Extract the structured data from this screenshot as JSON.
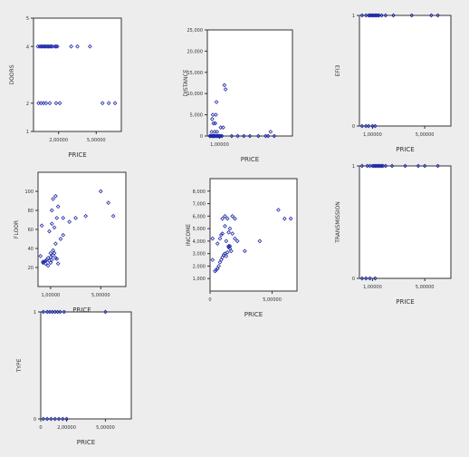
{
  "chart_data": [
    {
      "type": "scatter",
      "xlabel": "PRICE",
      "ylabel": "DOORS",
      "xlim": [
        0,
        700000
      ],
      "ylim": [
        1,
        5
      ],
      "xticks": [
        {
          "v": 200000,
          "label": "2,00000"
        },
        {
          "v": 500000,
          "label": "5,00000"
        }
      ],
      "yticks": [
        {
          "v": 1,
          "label": "1"
        },
        {
          "v": 2,
          "label": "2"
        },
        {
          "v": 4,
          "label": "4"
        },
        {
          "v": 5,
          "label": "5"
        }
      ],
      "series": [
        {
          "x": [
            35000,
            50000,
            60000,
            70000,
            80000,
            90000,
            100000,
            110000,
            120000,
            130000,
            140000,
            150000,
            170000,
            180000,
            190000,
            300000,
            350000,
            450000,
            40000,
            60000,
            80000,
            100000,
            130000,
            180000,
            210000,
            550000,
            600000,
            650000
          ],
          "y": [
            4,
            4,
            4,
            4,
            4,
            4,
            4,
            4,
            4,
            4,
            4,
            4,
            4,
            4,
            4,
            4,
            4,
            4,
            2,
            2,
            2,
            2,
            2,
            2,
            2,
            2,
            2,
            2
          ]
        }
      ],
      "color": "#1f2aa8"
    },
    {
      "type": "scatter",
      "xlabel": "PRICE",
      "ylabel": "DISTANCE",
      "xlim": [
        0,
        700000
      ],
      "ylim": [
        0,
        25000
      ],
      "xticks": [
        {
          "v": 100000,
          "label": "1,00000"
        }
      ],
      "yticks": [
        {
          "v": 0,
          "label": "0"
        },
        {
          "v": 5000,
          "label": "5,000"
        },
        {
          "v": 10000,
          "label": "10,000"
        },
        {
          "v": 15000,
          "label": "15,000"
        },
        {
          "v": 20000,
          "label": "20,000"
        },
        {
          "v": 25000,
          "label": "25,000"
        }
      ],
      "series": [
        {
          "x": [
            20000,
            25000,
            30000,
            40000,
            45000,
            50000,
            55000,
            60000,
            70000,
            80000,
            90000,
            100000,
            110000,
            120000,
            35000,
            60000,
            80000,
            90000,
            110000,
            130000,
            50000,
            65000,
            70000,
            40000,
            45000,
            75000,
            140000,
            150000,
            200000,
            250000,
            300000,
            350000,
            420000,
            480000,
            500000,
            550000,
            520000
          ],
          "y": [
            0,
            0,
            0,
            0,
            0,
            0,
            0,
            0,
            0,
            0,
            0,
            0,
            0,
            0,
            1000,
            1000,
            1000,
            0,
            2000,
            2000,
            3000,
            3000,
            5000,
            4000,
            5000,
            8000,
            12000,
            11000,
            0,
            0,
            0,
            0,
            0,
            0,
            0,
            0,
            1000
          ]
        }
      ],
      "color": "#1f2aa8"
    },
    {
      "type": "scatter",
      "xlabel": "PRICE",
      "ylabel": "EFI3",
      "xlim": [
        0,
        700000
      ],
      "ylim": [
        0,
        1
      ],
      "xticks": [
        {
          "v": 100000,
          "label": "1,00000"
        },
        {
          "v": 500000,
          "label": "5,00000"
        }
      ],
      "yticks": [
        {
          "v": 0,
          "label": "0"
        },
        {
          "v": 1,
          "label": "1"
        }
      ],
      "series": [
        {
          "x": [
            20000,
            50000,
            70000,
            80000,
            90000,
            100000,
            110000,
            120000,
            130000,
            140000,
            150000,
            170000,
            200000,
            260000,
            400000,
            550000,
            600000,
            20000,
            50000,
            70000,
            100000,
            120000
          ],
          "y": [
            1,
            1,
            1,
            1,
            1,
            1,
            1,
            1,
            1,
            1,
            1,
            1,
            1,
            1,
            1,
            1,
            1,
            0,
            0,
            0,
            0,
            0
          ]
        }
      ],
      "color": "#1f2aa8"
    },
    {
      "type": "scatter",
      "xlabel": "PRICE",
      "ylabel": "FLOOR",
      "xlim": [
        0,
        700000
      ],
      "ylim": [
        0,
        120
      ],
      "xticks": [
        {
          "v": 100000,
          "label": "1,00000"
        },
        {
          "v": 500000,
          "label": "5,00000"
        }
      ],
      "yticks": [
        {
          "v": 20,
          "label": "20"
        },
        {
          "v": 40,
          "label": "40"
        },
        {
          "v": 60,
          "label": "60"
        },
        {
          "v": 80,
          "label": "80"
        },
        {
          "v": 100,
          "label": "100"
        }
      ],
      "series": [
        {
          "x": [
            20000,
            40000,
            50000,
            60000,
            70000,
            80000,
            90000,
            100000,
            110000,
            120000,
            130000,
            140000,
            150000,
            160000,
            40000,
            60000,
            80000,
            100000,
            120000,
            140000,
            180000,
            200000,
            30000,
            90000,
            110000,
            130000,
            150000,
            250000,
            300000,
            110000,
            120000,
            140000,
            160000,
            200000,
            380000,
            500000,
            560000,
            600000,
            100000
          ],
          "y": [
            32,
            25,
            26,
            24,
            28,
            30,
            27,
            31,
            28,
            33,
            35,
            30,
            29,
            24,
            26,
            27,
            22,
            35,
            38,
            45,
            50,
            54,
            64,
            58,
            66,
            62,
            72,
            68,
            72,
            80,
            92,
            95,
            84,
            72,
            74,
            100,
            88,
            74,
            25
          ]
        }
      ],
      "color": "#1f2aa8"
    },
    {
      "type": "scatter",
      "xlabel": "PRICE",
      "ylabel": "INCOME",
      "xlim": [
        0,
        700000
      ],
      "ylim": [
        0,
        9000
      ],
      "xticks": [
        {
          "v": 0,
          "label": "0"
        },
        {
          "v": 500000,
          "label": "5,00000"
        }
      ],
      "yticks": [
        {
          "v": 1000,
          "label": "1,000"
        },
        {
          "v": 2000,
          "label": "2,000"
        },
        {
          "v": 3000,
          "label": "3,000"
        },
        {
          "v": 4000,
          "label": "4,000"
        },
        {
          "v": 5000,
          "label": "5,000"
        },
        {
          "v": 6000,
          "label": "6,000"
        },
        {
          "v": 7000,
          "label": "7,000"
        },
        {
          "v": 8000,
          "label": "8,000"
        }
      ],
      "series": [
        {
          "x": [
            20000,
            40000,
            50000,
            60000,
            70000,
            80000,
            90000,
            100000,
            110000,
            120000,
            130000,
            140000,
            150000,
            160000,
            170000,
            60000,
            80000,
            90000,
            100000,
            130000,
            160000,
            180000,
            200000,
            20000,
            100000,
            120000,
            180000,
            220000,
            120000,
            140000,
            150000,
            200000,
            280000,
            400000,
            550000,
            600000,
            650000,
            150000,
            160000
          ],
          "y": [
            2500,
            1600,
            1700,
            1800,
            2000,
            2300,
            2500,
            2700,
            2900,
            3000,
            2800,
            3100,
            3500,
            3400,
            3200,
            3800,
            4200,
            4500,
            4600,
            4000,
            5000,
            6000,
            5800,
            4200,
            5800,
            5200,
            4600,
            4000,
            6000,
            5800,
            4700,
            4200,
            3200,
            4000,
            6500,
            5800,
            5800,
            3600,
            3600
          ]
        }
      ],
      "color": "#1f2aa8"
    },
    {
      "type": "scatter",
      "xlabel": "PRICE",
      "ylabel": "TRANSMISSION",
      "xlim": [
        0,
        700000
      ],
      "ylim": [
        0,
        1
      ],
      "xticks": [
        {
          "v": 100000,
          "label": "1,00000"
        },
        {
          "v": 500000,
          "label": "5,00000"
        }
      ],
      "yticks": [
        {
          "v": 0,
          "label": "0"
        },
        {
          "v": 1,
          "label": "1"
        }
      ],
      "series": [
        {
          "x": [
            20000,
            60000,
            80000,
            100000,
            110000,
            120000,
            130000,
            140000,
            150000,
            160000,
            170000,
            180000,
            200000,
            250000,
            350000,
            450000,
            500000,
            600000,
            20000,
            50000,
            80000,
            120000
          ],
          "y": [
            1,
            1,
            1,
            1,
            1,
            1,
            1,
            1,
            1,
            1,
            1,
            1,
            1,
            1,
            1,
            1,
            1,
            1,
            0,
            0,
            0,
            0
          ]
        }
      ],
      "color": "#1f2aa8"
    },
    {
      "type": "scatter",
      "xlabel": "PRICE",
      "ylabel": "TYPE",
      "xlim": [
        0,
        700000
      ],
      "ylim": [
        0,
        1
      ],
      "xticks": [
        {
          "v": 0,
          "label": "0"
        },
        {
          "v": 200000,
          "label": "2,00000"
        },
        {
          "v": 500000,
          "label": "5,00000"
        }
      ],
      "yticks": [
        {
          "v": 0,
          "label": "0"
        },
        {
          "v": 1,
          "label": "1"
        }
      ],
      "series": [
        {
          "x": [
            20000,
            50000,
            70000,
            90000,
            110000,
            130000,
            150000,
            180000,
            500000,
            20000,
            50000,
            80000,
            110000,
            140000,
            170000,
            200000
          ],
          "y": [
            1,
            1,
            1,
            1,
            1,
            1,
            1,
            1,
            1,
            0,
            0,
            0,
            0,
            0,
            0,
            0
          ]
        }
      ],
      "color": "#1f2aa8"
    }
  ]
}
